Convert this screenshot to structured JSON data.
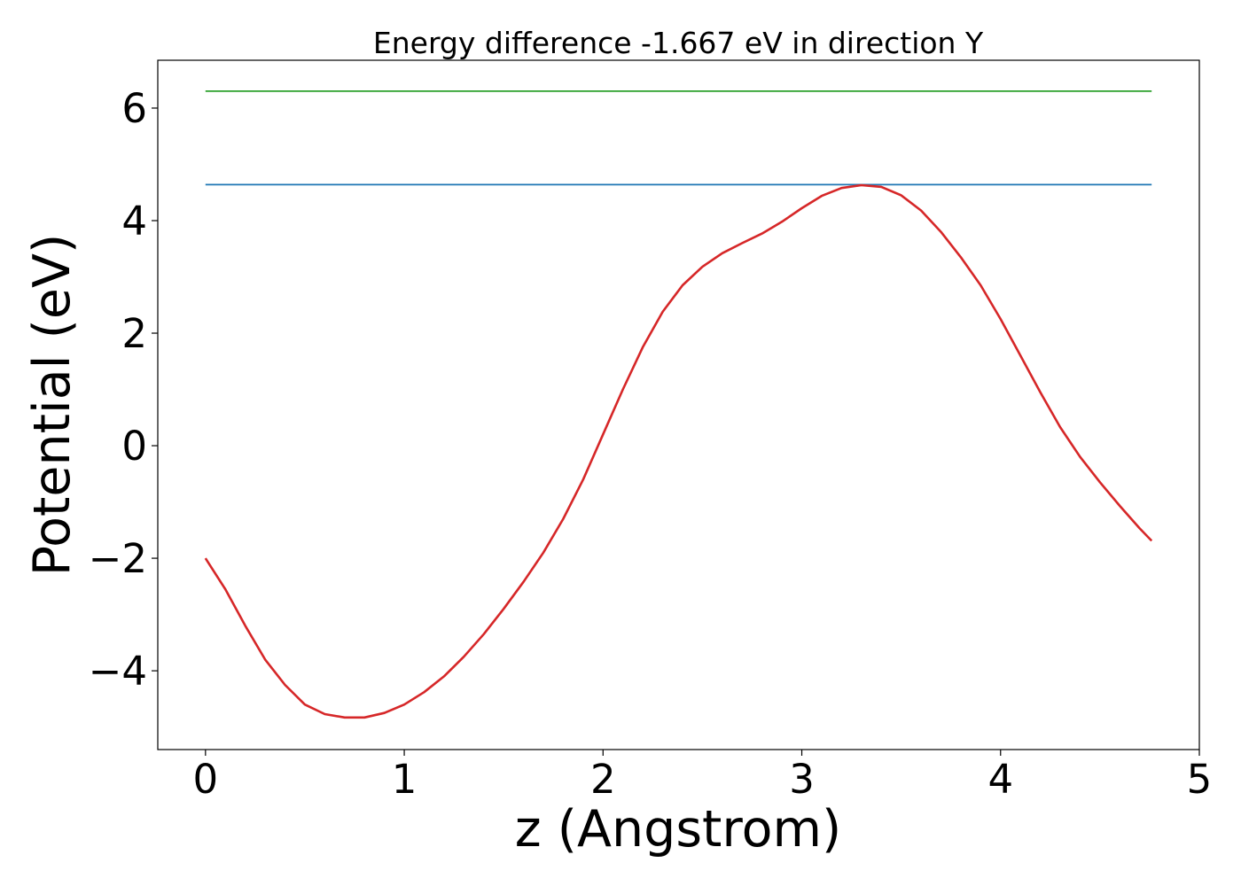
{
  "chart_data": {
    "type": "line",
    "title": "Energy difference -1.667 eV in direction Y",
    "xlabel": "z (Angstrom)",
    "ylabel": "Potential (eV)",
    "xlim": [
      -0.24,
      5.0
    ],
    "ylim": [
      -5.4,
      6.85
    ],
    "xticks": [
      0,
      1,
      2,
      3,
      4,
      5
    ],
    "xtick_labels": [
      "0",
      "1",
      "2",
      "3",
      "4",
      "5"
    ],
    "yticks": [
      -4,
      -2,
      0,
      2,
      4,
      6
    ],
    "ytick_labels": [
      "−4",
      "−2",
      "0",
      "2",
      "4",
      "6"
    ],
    "grid": false,
    "series": [
      {
        "color": "#2ca02c",
        "x": [
          0,
          4.76
        ],
        "y": [
          6.3,
          6.3
        ]
      },
      {
        "color": "#1f77b4",
        "x": [
          0,
          4.76
        ],
        "y": [
          4.64,
          4.64
        ]
      },
      {
        "color": "#d62728",
        "x": [
          0,
          0.1,
          0.2,
          0.3,
          0.4,
          0.5,
          0.6,
          0.7,
          0.8,
          0.9,
          1.0,
          1.1,
          1.2,
          1.3,
          1.4,
          1.5,
          1.6,
          1.7,
          1.8,
          1.9,
          2.0,
          2.1,
          2.2,
          2.3,
          2.4,
          2.5,
          2.6,
          2.7,
          2.8,
          2.9,
          3.0,
          3.1,
          3.2,
          3.3,
          3.4,
          3.5,
          3.6,
          3.7,
          3.8,
          3.9,
          4.0,
          4.1,
          4.2,
          4.3,
          4.4,
          4.5,
          4.6,
          4.7,
          4.76
        ],
        "y": [
          -2.0,
          -2.55,
          -3.2,
          -3.8,
          -4.25,
          -4.6,
          -4.77,
          -4.83,
          -4.83,
          -4.75,
          -4.6,
          -4.38,
          -4.1,
          -3.75,
          -3.35,
          -2.9,
          -2.42,
          -1.9,
          -1.3,
          -0.6,
          0.2,
          1.0,
          1.75,
          2.38,
          2.85,
          3.18,
          3.42,
          3.6,
          3.77,
          3.98,
          4.22,
          4.44,
          4.58,
          4.63,
          4.6,
          4.45,
          4.18,
          3.8,
          3.35,
          2.85,
          2.25,
          1.6,
          0.95,
          0.33,
          -0.2,
          -0.65,
          -1.07,
          -1.47,
          -1.69
        ]
      }
    ]
  }
}
